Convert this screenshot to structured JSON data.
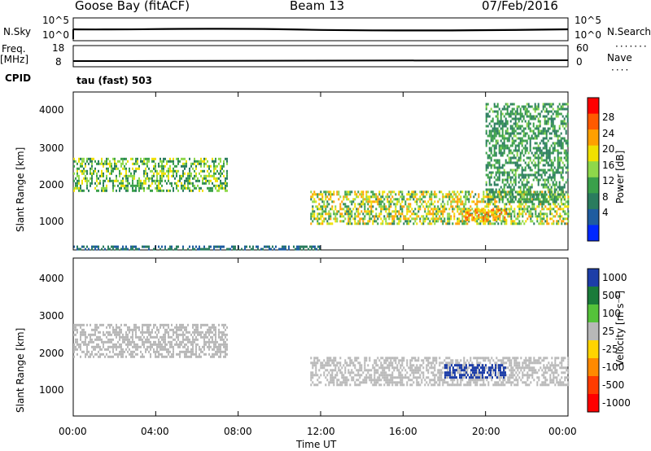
{
  "header": {
    "station": "Goose Bay (fitACF)",
    "beam": "Beam 13",
    "date": "07/Feb/2016",
    "cpid_label": "CPID",
    "cpid_value": "tau (fast) 503"
  },
  "strip_labels": {
    "nsky": "N.Sky",
    "nsearch": "N.Search",
    "freq": "Freq.",
    "freq_unit": "[MHz]",
    "nave": "Nave",
    "left_top_ticks": [
      "10^5",
      "10^0"
    ],
    "right_top_ticks": [
      "10^5",
      "10^0"
    ],
    "freq_ticks": [
      "18",
      "8"
    ],
    "nave_ticks": [
      "60",
      "0"
    ]
  },
  "axes": {
    "ylabel": "Slant Range [km]",
    "xlabel": "Time UT",
    "yticks": [
      "4000",
      "3000",
      "2000",
      "1000"
    ],
    "xticks": [
      "00:00",
      "04:00",
      "08:00",
      "12:00",
      "16:00",
      "20:00",
      "00:00"
    ]
  },
  "colorbars": {
    "power": {
      "label": "Power [dB]",
      "ticks": [
        "28",
        "24",
        "20",
        "16",
        "12",
        "8",
        "4"
      ],
      "colors": [
        "#ff0000",
        "#ff5a00",
        "#ffa000",
        "#f0e000",
        "#8ed84a",
        "#3aa04a",
        "#2a7c5e",
        "#1e5ca0",
        "#0028ff"
      ]
    },
    "velocity": {
      "label": "Velocity [m s⁻¹]",
      "ticks": [
        "1000",
        "500",
        "100",
        "25",
        "-25",
        "-100",
        "-500",
        "-1000"
      ],
      "colors": [
        "#1d3ea8",
        "#1a7b3a",
        "#55c23a",
        "#b8b8b8",
        "#ffd400",
        "#ff8a00",
        "#ff3c00",
        "#ff0000"
      ]
    }
  },
  "chart_data": [
    {
      "type": "heatmap",
      "title": "Power",
      "xlabel": "Time UT",
      "ylabel": "Slant Range [km]",
      "xlim": [
        "00:00",
        "24:00"
      ],
      "ylim": [
        180,
        4500
      ],
      "colorbar_label": "Power [dB]",
      "colorbar_range": [
        0,
        30
      ],
      "echo_regions": [
        {
          "start": "00:00",
          "end": "07:30",
          "range_km": [
            1800,
            2700
          ],
          "power_db": [
            6,
            20
          ]
        },
        {
          "start": "11:30",
          "end": "24:00",
          "range_km": [
            900,
            1800
          ],
          "power_db": [
            8,
            24
          ]
        },
        {
          "start": "19:00",
          "end": "21:00",
          "range_km": [
            1000,
            1300
          ],
          "power_db": [
            18,
            28
          ]
        },
        {
          "start": "20:00",
          "end": "24:00",
          "range_km": [
            1500,
            4200
          ],
          "power_db": [
            6,
            14
          ]
        },
        {
          "start": "00:00",
          "end": "12:00",
          "range_km": [
            200,
            300
          ],
          "power_db": [
            4,
            8
          ]
        }
      ]
    },
    {
      "type": "heatmap",
      "title": "Velocity",
      "xlabel": "Time UT",
      "ylabel": "Slant Range [km]",
      "xlim": [
        "00:00",
        "24:00"
      ],
      "ylim": [
        180,
        4500
      ],
      "colorbar_label": "Velocity [m s⁻¹]",
      "colorbar_range": [
        -1000,
        1000
      ],
      "echo_regions": [
        {
          "start": "00:00",
          "end": "07:30",
          "range_km": [
            1800,
            2700
          ],
          "velocity": [
            -25,
            25
          ]
        },
        {
          "start": "11:30",
          "end": "24:00",
          "range_km": [
            1000,
            1800
          ],
          "velocity": [
            -25,
            25
          ]
        },
        {
          "start": "18:00",
          "end": "21:00",
          "range_km": [
            1200,
            1600
          ],
          "velocity": [
            500,
            1000
          ]
        }
      ]
    }
  ]
}
